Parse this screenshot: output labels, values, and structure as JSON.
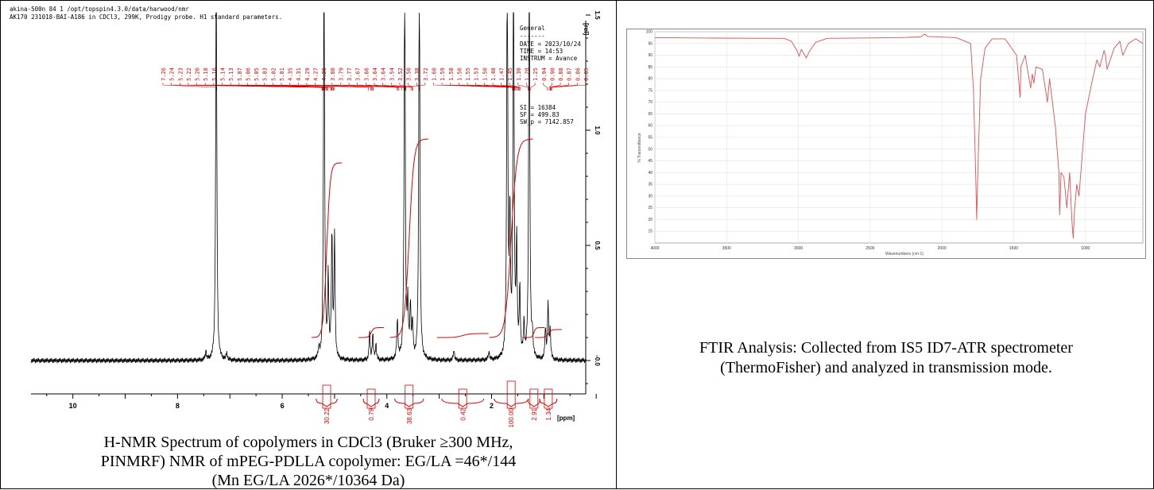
{
  "nmr": {
    "header_line1": "akina-500n  84  1  /opt/topspin4.3.0/data/harwood/nmr",
    "header_line2": "AK170 231018-BAI-A186 in CDCl3, 299K, Prodigy probe.  H1 standard parameters.",
    "params": {
      "title": "General",
      "rule": "-------",
      "lines": [
        "DATE = 2023/10/24",
        "TIME = 14:53",
        "INSTRUM = Avance"
      ],
      "lines2": [
        "SI =  16384",
        "SF =  499.83",
        "SW_p =  7142.857"
      ]
    },
    "peak_labels": [
      "7.26",
      "5.24",
      "5.23",
      "5.22",
      "5.20",
      "5.18",
      "5.16",
      "5.14",
      "5.13",
      "5.07",
      "5.06",
      "5.05",
      "5.03",
      "5.02",
      "5.01",
      "4.35",
      "4.31",
      "4.29",
      "4.27",
      "4.26",
      "3.80",
      "3.79",
      "3.77",
      "3.67",
      "3.66",
      "3.64",
      "3.64",
      "3.54",
      "3.52",
      "3.50",
      "3.38",
      "3.72",
      "1.60",
      "1.59",
      "1.58",
      "1.56",
      "1.55",
      "1.53",
      "1.50",
      "1.48",
      "1.47",
      "1.45",
      "1.30",
      "1.28",
      "1.25",
      "0.94",
      "0.90",
      "0.88",
      "0.87",
      "0.86",
      "0.85"
    ],
    "integrals": [
      "30.22",
      "0.79",
      "38.63",
      "0.42",
      "100.00",
      "2.91",
      "1.34"
    ],
    "x_unit": "[ppm]",
    "y_unit": "[rel]"
  },
  "ftir": {
    "y_label": "% Transmittance",
    "x_label": "Wavenumbers (cm-1)"
  },
  "captions": {
    "nmr_line1": "H-NMR Spectrum of copolymers in CDCl3 (Bruker ≥300 MHz,",
    "nmr_line2": "PINMRF) NMR of mPEG-PDLLA copolymer: EG/LA =46*/144",
    "nmr_line3": "(Mn EG/LA 2026*/10364 Da)",
    "ftir_line1": "FTIR Analysis: Collected from IS5 ID7-ATR spectrometer",
    "ftir_line2": "(ThermoFisher) and analyzed in transmission mode."
  },
  "colors": {
    "spectrum": "#000000",
    "integral": "#e00000",
    "ir_trace": "#e05050"
  },
  "chart_data": [
    {
      "type": "line",
      "title": "",
      "xlabel": "[ppm]",
      "ylabel": "[rel]",
      "xlim": [
        10.8,
        0.2
      ],
      "ylim": [
        -0.1,
        1.75
      ],
      "x_reversed": true,
      "x_ticks": [
        10,
        8,
        6,
        4,
        2
      ],
      "y_ticks": [
        0.0,
        0.5,
        1.0,
        1.5
      ],
      "y_tick_labels": [
        "-0.0",
        "0.5",
        "1.0",
        "1.5"
      ],
      "peaks": [
        {
          "x": 7.46,
          "y": 0.04
        },
        {
          "x": 7.26,
          "y": 1.85
        },
        {
          "x": 7.06,
          "y": 0.03
        },
        {
          "x": 5.3,
          "y": 0.05
        },
        {
          "x": 5.2,
          "y": 1.85
        },
        {
          "x": 5.12,
          "y": 0.35
        },
        {
          "x": 5.05,
          "y": 0.55
        },
        {
          "x": 5.0,
          "y": 0.53
        },
        {
          "x": 4.33,
          "y": 0.12
        },
        {
          "x": 4.27,
          "y": 0.11
        },
        {
          "x": 4.21,
          "y": 0.07
        },
        {
          "x": 3.8,
          "y": 0.18
        },
        {
          "x": 3.66,
          "y": 1.85
        },
        {
          "x": 3.6,
          "y": 0.22
        },
        {
          "x": 3.55,
          "y": 0.23
        },
        {
          "x": 3.51,
          "y": 0.15
        },
        {
          "x": 3.38,
          "y": 1.85
        },
        {
          "x": 2.72,
          "y": 0.05
        },
        {
          "x": 2.05,
          "y": 0.04
        },
        {
          "x": 1.7,
          "y": 1.85
        },
        {
          "x": 1.65,
          "y": 0.6
        },
        {
          "x": 1.58,
          "y": 1.85
        },
        {
          "x": 1.52,
          "y": 0.5
        },
        {
          "x": 1.46,
          "y": 0.3
        },
        {
          "x": 1.38,
          "y": 0.15
        },
        {
          "x": 1.28,
          "y": 1.85
        },
        {
          "x": 1.22,
          "y": 0.1
        },
        {
          "x": 0.97,
          "y": 0.14
        },
        {
          "x": 0.92,
          "y": 0.24
        },
        {
          "x": 0.88,
          "y": 0.13
        }
      ],
      "integral_regions": [
        {
          "from": 5.35,
          "to": 4.95,
          "value": "30.22"
        },
        {
          "from": 4.45,
          "to": 4.15,
          "value": "0.79"
        },
        {
          "from": 3.85,
          "to": 3.3,
          "value": "38.63"
        },
        {
          "from": 2.95,
          "to": 2.15,
          "value": "0.42"
        },
        {
          "from": 1.95,
          "to": 1.3,
          "value": "100.00"
        },
        {
          "from": 1.3,
          "to": 1.08,
          "value": "2.91"
        },
        {
          "from": 1.08,
          "to": 0.75,
          "value": "1.34"
        }
      ]
    },
    {
      "type": "line",
      "title": "",
      "xlabel": "Wavenumbers (cm-1)",
      "ylabel": "% Transmittance",
      "xlim": [
        4000,
        600
      ],
      "ylim": [
        10,
        100
      ],
      "x_reversed": true,
      "x_ticks": [
        4000,
        3500,
        3000,
        2500,
        2000,
        1500,
        1000
      ],
      "y_ticks": [
        15,
        20,
        25,
        30,
        35,
        40,
        45,
        50,
        55,
        60,
        65,
        70,
        75,
        80,
        85,
        90,
        95,
        100
      ],
      "grid": true,
      "points": [
        [
          4000,
          97.5
        ],
        [
          3600,
          97.3
        ],
        [
          3100,
          97.2
        ],
        [
          3050,
          96.0
        ],
        [
          3010,
          92.0
        ],
        [
          2995,
          89.5
        ],
        [
          2980,
          92.5
        ],
        [
          2960,
          90.5
        ],
        [
          2945,
          88.8
        ],
        [
          2925,
          91.5
        ],
        [
          2880,
          95.5
        ],
        [
          2800,
          97.2
        ],
        [
          2300,
          97.5
        ],
        [
          2150,
          97.8
        ],
        [
          2120,
          99.0
        ],
        [
          2100,
          98.0
        ],
        [
          1900,
          97.5
        ],
        [
          1800,
          95.0
        ],
        [
          1780,
          75.0
        ],
        [
          1765,
          40.0
        ],
        [
          1758,
          20.0
        ],
        [
          1750,
          40.0
        ],
        [
          1730,
          80.0
        ],
        [
          1700,
          93.0
        ],
        [
          1650,
          97.0
        ],
        [
          1560,
          97.0
        ],
        [
          1480,
          90.0
        ],
        [
          1455,
          72.0
        ],
        [
          1450,
          85.0
        ],
        [
          1420,
          90.0
        ],
        [
          1382,
          76.0
        ],
        [
          1370,
          82.0
        ],
        [
          1360,
          78.0
        ],
        [
          1345,
          85.0
        ],
        [
          1300,
          84.0
        ],
        [
          1265,
          70.0
        ],
        [
          1250,
          80.0
        ],
        [
          1210,
          60.0
        ],
        [
          1185,
          40.0
        ],
        [
          1180,
          22.0
        ],
        [
          1170,
          40.0
        ],
        [
          1150,
          38.0
        ],
        [
          1130,
          25.0
        ],
        [
          1110,
          40.0
        ],
        [
          1095,
          20.0
        ],
        [
          1085,
          12.0
        ],
        [
          1075,
          25.0
        ],
        [
          1060,
          35.0
        ],
        [
          1045,
          30.0
        ],
        [
          1000,
          65.0
        ],
        [
          950,
          80.0
        ],
        [
          920,
          88.0
        ],
        [
          900,
          85.0
        ],
        [
          870,
          92.0
        ],
        [
          860,
          90.0
        ],
        [
          850,
          84.0
        ],
        [
          800,
          93.0
        ],
        [
          760,
          96.0
        ],
        [
          740,
          90.0
        ],
        [
          700,
          95.0
        ],
        [
          650,
          97.0
        ],
        [
          600,
          95.0
        ]
      ]
    }
  ]
}
